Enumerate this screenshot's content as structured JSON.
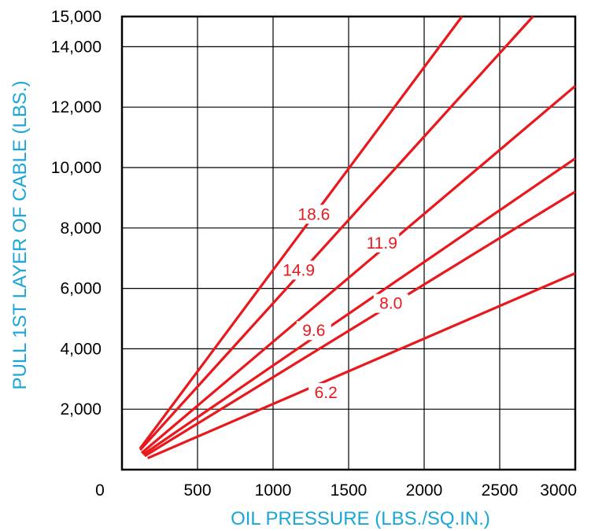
{
  "chart_data": {
    "type": "line",
    "xlabel": "OIL PRESSURE (LBS./SQ.IN.)",
    "ylabel": "PULL 1ST LAYER OF CABLE (LBS.)",
    "xlim": [
      0,
      3000
    ],
    "ylim": [
      0,
      15000
    ],
    "x_ticks": [
      "0",
      "500",
      "1000",
      "1500",
      "2000",
      "2500",
      "3000"
    ],
    "x_tick_values": [
      0,
      500,
      1000,
      1500,
      2000,
      2500,
      3000
    ],
    "y_ticks": [
      "2,000",
      "4,000",
      "6,000",
      "8,000",
      "10,000",
      "12,000",
      "14,000",
      "15,000"
    ],
    "y_tick_values": [
      2000,
      4000,
      6000,
      8000,
      10000,
      12000,
      14000,
      15000
    ],
    "grid": true,
    "line_color": "#e8181d",
    "axis_title_color": "#1aa6d6",
    "series": [
      {
        "name": "18.6",
        "label_at": [
          1270,
          8350
        ],
        "points": [
          [
            120,
            700
          ],
          [
            2250,
            15000
          ]
        ]
      },
      {
        "name": "14.9",
        "label_at": [
          1170,
          6500
        ],
        "points": [
          [
            120,
            650
          ],
          [
            2720,
            15000
          ]
        ]
      },
      {
        "name": "11.9",
        "label_at": [
          1720,
          7400
        ],
        "points": [
          [
            130,
            550
          ],
          [
            3000,
            12700
          ]
        ]
      },
      {
        "name": "9.6",
        "label_at": [
          1270,
          4500
        ],
        "points": [
          [
            140,
            500
          ],
          [
            3000,
            10300
          ]
        ]
      },
      {
        "name": "8.0",
        "label_at": [
          1780,
          5400
        ],
        "points": [
          [
            150,
            450
          ],
          [
            3000,
            9200
          ]
        ]
      },
      {
        "name": "6.2",
        "label_at": [
          1350,
          2450
        ],
        "points": [
          [
            170,
            380
          ],
          [
            3000,
            6500
          ]
        ]
      }
    ]
  }
}
